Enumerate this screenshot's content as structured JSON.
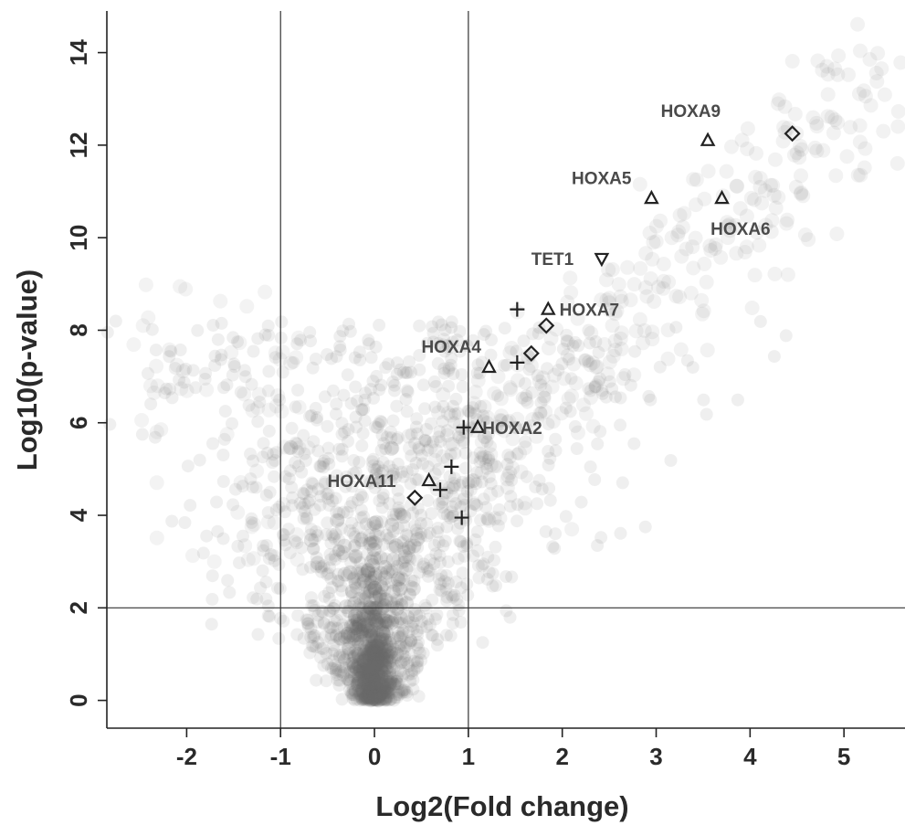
{
  "chart_data": {
    "type": "scatter",
    "xlabel": "Log2(Fold change)",
    "ylabel": "Log10(p-value)",
    "xlim": [
      -2.85,
      5.65
    ],
    "ylim": [
      -0.6,
      14.9
    ],
    "xticks": [
      -2,
      -1,
      0,
      1,
      2,
      3,
      4,
      5
    ],
    "yticks": [
      0,
      2,
      4,
      6,
      8,
      10,
      12,
      14
    ],
    "xtick_labels": [
      "-2",
      "-1",
      "0",
      "1",
      "2",
      "3",
      "4",
      "5"
    ],
    "ytick_labels": [
      "0",
      "2",
      "4",
      "6",
      "8",
      "10",
      "12",
      "14"
    ],
    "reference_lines": {
      "vertical": [
        -1,
        1
      ],
      "horizontal": [
        2
      ]
    },
    "grid": false,
    "background_cloud": "dense grey volcano-shaped cloud of points centred at x=0, y=0, widening upward and extending to the upper right",
    "highlighted_points": [
      {
        "marker": "triangle",
        "x": 3.55,
        "y": 12.1
      },
      {
        "marker": "diamond",
        "x": 4.45,
        "y": 12.25
      },
      {
        "marker": "triangle",
        "x": 2.95,
        "y": 10.85
      },
      {
        "marker": "triangle",
        "x": 3.7,
        "y": 10.85
      },
      {
        "marker": "triangle-down",
        "x": 2.42,
        "y": 9.55
      },
      {
        "marker": "plus",
        "x": 1.52,
        "y": 8.45
      },
      {
        "marker": "triangle",
        "x": 1.85,
        "y": 8.45
      },
      {
        "marker": "diamond",
        "x": 1.83,
        "y": 8.1
      },
      {
        "marker": "triangle",
        "x": 1.22,
        "y": 7.2
      },
      {
        "marker": "plus",
        "x": 1.52,
        "y": 7.3
      },
      {
        "marker": "diamond",
        "x": 1.67,
        "y": 7.5
      },
      {
        "marker": "plus",
        "x": 0.95,
        "y": 5.9
      },
      {
        "marker": "triangle",
        "x": 1.1,
        "y": 5.9
      },
      {
        "marker": "plus",
        "x": 0.82,
        "y": 5.05
      },
      {
        "marker": "triangle",
        "x": 0.58,
        "y": 4.75
      },
      {
        "marker": "plus",
        "x": 0.7,
        "y": 4.55
      },
      {
        "marker": "diamond",
        "x": 0.43,
        "y": 4.38
      },
      {
        "marker": "plus",
        "x": 0.93,
        "y": 3.95
      }
    ],
    "gene_labels": [
      {
        "text": "HOXA9",
        "x": 3.05,
        "y": 12.75
      },
      {
        "text": "HOXA5",
        "x": 2.1,
        "y": 11.3
      },
      {
        "text": "HOXA6",
        "x": 3.58,
        "y": 10.2
      },
      {
        "text": "TET1",
        "x": 1.67,
        "y": 9.55
      },
      {
        "text": "HOXA7",
        "x": 1.97,
        "y": 8.45
      },
      {
        "text": "HOXA4",
        "x": 0.5,
        "y": 7.65
      },
      {
        "text": "HOXA2",
        "x": 1.15,
        "y": 5.9
      },
      {
        "text": "HOXA11",
        "x": -0.5,
        "y": 4.75
      }
    ]
  }
}
